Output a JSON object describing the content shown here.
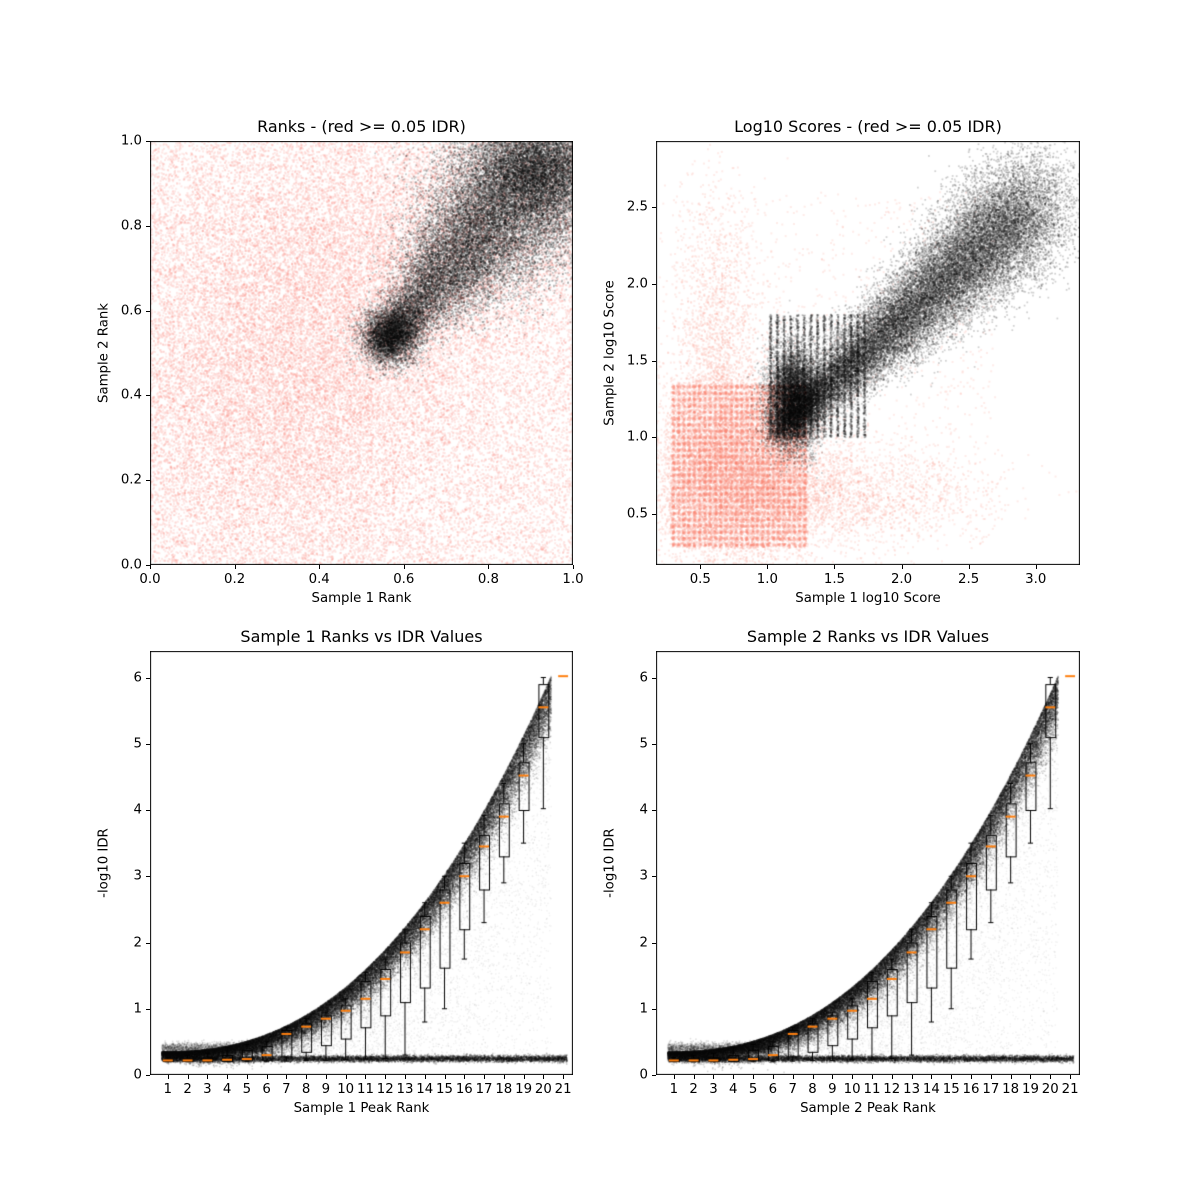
{
  "figure": {
    "background": "#ffffff"
  },
  "colors": {
    "rejected": "#fa8072",
    "accepted": "#000000",
    "boxplot_median": "#ff7f0e",
    "boxplot_line": "#000000"
  },
  "chart_data": [
    {
      "id": "ranks-scatter",
      "type": "scatter",
      "title": "Ranks - (red >= 0.05 IDR)",
      "xlabel": "Sample 1 Rank",
      "ylabel": "Sample 2 Rank",
      "xlim": [
        0,
        1
      ],
      "ylim": [
        0,
        1
      ],
      "clamp": true,
      "xticks": [
        0,
        0.2,
        0.4,
        0.6,
        0.8,
        1.0
      ],
      "xtick_labels": [
        "0.0",
        "0.2",
        "0.4",
        "0.6",
        "0.8",
        "1.0"
      ],
      "yticks": [
        0,
        0.2,
        0.4,
        0.6,
        0.8,
        1.0
      ],
      "ytick_labels": [
        "0.0",
        "0.2",
        "0.4",
        "0.6",
        "0.8",
        "1.0"
      ],
      "series": [
        {
          "name": "rejected-peaks-idr-ge-0.05",
          "color": "#fa8072",
          "alpha": 0.18,
          "size": 2,
          "clouds": [
            {
              "type": "uniform",
              "n": 22000,
              "x": [
                0,
                1
              ],
              "y": [
                0,
                1
              ]
            },
            {
              "type": "gauss",
              "n": 12000,
              "cx": 0.32,
              "cy": 0.42,
              "sx": 0.22,
              "sy": 0.26
            },
            {
              "type": "gauss",
              "n": 5000,
              "cx": 0.52,
              "cy": 0.72,
              "sx": 0.26,
              "sy": 0.18
            }
          ]
        },
        {
          "name": "accepted-peaks-idr-lt-0.05",
          "color": "#000000",
          "alpha": 0.2,
          "size": 1.8,
          "clouds": [
            {
              "type": "taper",
              "n": 24000,
              "x0": 0.53,
              "y0": 0.5,
              "x1": 0.97,
              "y1": 0.99,
              "w0": 0.012,
              "w1": 0.12,
              "pow": 0.6
            },
            {
              "type": "gauss",
              "n": 4000,
              "cx": 0.57,
              "cy": 0.54,
              "sx": 0.035,
              "sy": 0.035
            },
            {
              "type": "gauss",
              "n": 6000,
              "cx": 0.92,
              "cy": 0.93,
              "sx": 0.07,
              "sy": 0.06
            }
          ]
        }
      ]
    },
    {
      "id": "log10-scores-scatter",
      "type": "scatter",
      "title": "Log10 Scores - (red >= 0.05 IDR)",
      "xlabel": "Sample 1 log10 Score",
      "ylabel": "Sample 2 log10 Score",
      "xlim": [
        0.17,
        3.33
      ],
      "ylim": [
        0.17,
        2.93
      ],
      "clamp": false,
      "xticks": [
        0.5,
        1.0,
        1.5,
        2.0,
        2.5,
        3.0
      ],
      "xtick_labels": [
        "0.5",
        "1.0",
        "1.5",
        "2.0",
        "2.5",
        "3.0"
      ],
      "yticks": [
        0.5,
        1.0,
        1.5,
        2.0,
        2.5
      ],
      "ytick_labels": [
        "0.5",
        "1.0",
        "1.5",
        "2.0",
        "2.5"
      ],
      "series": [
        {
          "name": "rejected-peaks-idr-ge-0.05",
          "color": "#fa8072",
          "alpha": 0.16,
          "size": 2,
          "clouds": [
            {
              "type": "grid",
              "n": 15000,
              "x": [
                0.28,
                1.3
              ],
              "y": [
                0.28,
                1.35
              ],
              "nx": 26,
              "ny": 26,
              "jx": 0.008,
              "jy": 0.008
            },
            {
              "type": "gauss",
              "n": 7000,
              "cx": 0.75,
              "cy": 0.75,
              "sx": 0.33,
              "sy": 0.33
            },
            {
              "type": "gauss",
              "n": 2500,
              "cx": 1.5,
              "cy": 0.62,
              "sx": 0.55,
              "sy": 0.16
            },
            {
              "type": "gauss",
              "n": 2000,
              "cx": 0.62,
              "cy": 1.6,
              "sx": 0.16,
              "sy": 0.5
            },
            {
              "type": "uniform",
              "n": 1200,
              "x": [
                0.3,
                2.7
              ],
              "y": [
                0.3,
                2.6
              ]
            }
          ]
        },
        {
          "name": "accepted-peaks-idr-lt-0.05",
          "color": "#000000",
          "alpha": 0.18,
          "size": 1.8,
          "clouds": [
            {
              "type": "taper",
              "n": 28000,
              "x0": 1.05,
              "y0": 1.02,
              "x1": 3.0,
              "y1": 2.55,
              "w0": 0.05,
              "w1": 0.2,
              "pow": 0.75
            },
            {
              "type": "gauss",
              "n": 8000,
              "cx": 1.2,
              "cy": 1.25,
              "sx": 0.1,
              "sy": 0.16
            },
            {
              "type": "grid",
              "n": 5000,
              "x": [
                1.0,
                1.75
              ],
              "y": [
                1.0,
                1.8
              ],
              "nx": 15,
              "ny": 0,
              "jx": 0.005,
              "jy": 0
            }
          ]
        }
      ]
    },
    {
      "id": "sample1-ranks-vs-idr",
      "type": "scatter",
      "title": "Sample 1 Ranks vs IDR Values",
      "xlabel": "Sample 1 Peak Rank",
      "ylabel": "-log10 IDR",
      "xlim": [
        0.1,
        21.5
      ],
      "ylim": [
        0,
        6.4
      ],
      "clamp": false,
      "xticks": [
        1,
        2,
        3,
        4,
        5,
        6,
        7,
        8,
        9,
        10,
        11,
        12,
        13,
        14,
        15,
        16,
        17,
        18,
        19,
        20,
        21
      ],
      "xtick_labels": [
        "1",
        "2",
        "3",
        "4",
        "5",
        "6",
        "7",
        "8",
        "9",
        "10",
        "11",
        "12",
        "13",
        "14",
        "15",
        "16",
        "17",
        "18",
        "19",
        "20",
        "21"
      ],
      "yticks": [
        0,
        1,
        2,
        3,
        4,
        5,
        6
      ],
      "ytick_labels": [
        "0",
        "1",
        "2",
        "3",
        "4",
        "5",
        "6"
      ],
      "series": [
        {
          "name": "idr-points",
          "color": "#000000",
          "alpha": 0.16,
          "size": 1.6,
          "clouds": [
            {
              "type": "curve",
              "n": 38000,
              "x": [
                0.7,
                20.4
              ],
              "base": 0.35,
              "amp": 5.67,
              "pow": 2.35,
              "edge": 0.045,
              "grow": 0.32,
              "ymax": 6.05
            },
            {
              "type": "trail",
              "n": 10000,
              "x": [
                5,
                20.4
              ],
              "xref": [
                0.7,
                20.4
              ],
              "base": 0.35,
              "amp": 5.67,
              "pow": 2.35,
              "floor": 0.32,
              "expo": 2.4,
              "alpha": 0.05
            },
            {
              "type": "band",
              "n": 8000,
              "x": [
                0.7,
                21.2
              ],
              "yc": 0.245,
              "h": 0.05,
              "alpha": 0.2
            },
            {
              "type": "band",
              "n": 2200,
              "x": [
                0.7,
                6.0
              ],
              "yc": 0.4,
              "h": 0.09,
              "alpha": 0.12
            }
          ]
        }
      ],
      "boxplot": {
        "positions": [
          1,
          2,
          3,
          4,
          5,
          6,
          7,
          8,
          9,
          10,
          11,
          12,
          13,
          14,
          15,
          16,
          17,
          18,
          19,
          20,
          21
        ],
        "median": [
          0.22,
          0.22,
          0.22,
          0.23,
          0.24,
          0.3,
          0.62,
          0.73,
          0.85,
          0.97,
          1.15,
          1.45,
          1.85,
          2.2,
          2.6,
          3.0,
          3.45,
          3.9,
          4.52,
          5.55,
          6.02
        ],
        "q1": [
          0.21,
          0.21,
          0.21,
          0.21,
          0.22,
          0.23,
          0.28,
          0.35,
          0.45,
          0.55,
          0.72,
          0.9,
          1.1,
          1.32,
          1.62,
          2.2,
          2.8,
          3.3,
          4.0,
          5.1,
          null
        ],
        "q3": [
          0.24,
          0.25,
          0.26,
          0.3,
          0.38,
          0.44,
          0.68,
          0.78,
          0.9,
          1.05,
          1.42,
          1.6,
          2.0,
          2.4,
          2.8,
          3.2,
          3.62,
          4.1,
          4.72,
          5.9,
          null
        ],
        "whisker_lo": [
          0.2,
          0.2,
          0.2,
          0.2,
          0.2,
          0.2,
          0.21,
          0.22,
          0.22,
          0.23,
          0.24,
          0.25,
          0.3,
          0.8,
          1.0,
          1.75,
          2.3,
          2.9,
          3.5,
          4.02,
          null
        ],
        "whisker_hi": [
          0.26,
          0.3,
          0.33,
          0.42,
          0.46,
          0.5,
          0.72,
          0.85,
          0.95,
          1.15,
          1.55,
          1.75,
          2.2,
          2.6,
          3.0,
          3.5,
          3.92,
          4.4,
          5.0,
          6.0,
          null
        ],
        "box_width": 0.5,
        "cap_width": 0.26,
        "line_color": "#000000",
        "median_color": "#ff7f0e"
      }
    },
    {
      "id": "sample2-ranks-vs-idr",
      "type": "scatter",
      "title": "Sample 2 Ranks vs IDR Values",
      "xlabel": "Sample 2 Peak Rank",
      "ylabel": "-log10 IDR",
      "xlim": [
        0.1,
        21.5
      ],
      "ylim": [
        0,
        6.4
      ],
      "clamp": false,
      "xticks": [
        1,
        2,
        3,
        4,
        5,
        6,
        7,
        8,
        9,
        10,
        11,
        12,
        13,
        14,
        15,
        16,
        17,
        18,
        19,
        20,
        21
      ],
      "xtick_labels": [
        "1",
        "2",
        "3",
        "4",
        "5",
        "6",
        "7",
        "8",
        "9",
        "10",
        "11",
        "12",
        "13",
        "14",
        "15",
        "16",
        "17",
        "18",
        "19",
        "20",
        "21"
      ],
      "yticks": [
        0,
        1,
        2,
        3,
        4,
        5,
        6
      ],
      "ytick_labels": [
        "0",
        "1",
        "2",
        "3",
        "4",
        "5",
        "6"
      ],
      "series": [
        {
          "name": "idr-points",
          "color": "#000000",
          "alpha": 0.16,
          "size": 1.6,
          "clouds": [
            {
              "type": "curve",
              "n": 38000,
              "x": [
                0.7,
                20.4
              ],
              "base": 0.35,
              "amp": 5.67,
              "pow": 2.35,
              "edge": 0.045,
              "grow": 0.32,
              "ymax": 6.05
            },
            {
              "type": "trail",
              "n": 10000,
              "x": [
                5,
                20.4
              ],
              "xref": [
                0.7,
                20.4
              ],
              "base": 0.35,
              "amp": 5.67,
              "pow": 2.35,
              "floor": 0.32,
              "expo": 2.4,
              "alpha": 0.05
            },
            {
              "type": "band",
              "n": 8000,
              "x": [
                0.7,
                21.2
              ],
              "yc": 0.245,
              "h": 0.05,
              "alpha": 0.2
            },
            {
              "type": "band",
              "n": 2200,
              "x": [
                0.7,
                6.0
              ],
              "yc": 0.4,
              "h": 0.09,
              "alpha": 0.12
            }
          ]
        }
      ],
      "boxplot": {
        "positions": [
          1,
          2,
          3,
          4,
          5,
          6,
          7,
          8,
          9,
          10,
          11,
          12,
          13,
          14,
          15,
          16,
          17,
          18,
          19,
          20,
          21
        ],
        "median": [
          0.22,
          0.22,
          0.22,
          0.23,
          0.24,
          0.3,
          0.62,
          0.73,
          0.85,
          0.97,
          1.15,
          1.45,
          1.85,
          2.2,
          2.6,
          3.0,
          3.45,
          3.9,
          4.52,
          5.55,
          6.02
        ],
        "q1": [
          0.21,
          0.21,
          0.21,
          0.21,
          0.22,
          0.23,
          0.28,
          0.35,
          0.45,
          0.55,
          0.72,
          0.9,
          1.1,
          1.32,
          1.62,
          2.2,
          2.8,
          3.3,
          4.0,
          5.1,
          null
        ],
        "q3": [
          0.24,
          0.25,
          0.26,
          0.3,
          0.38,
          0.44,
          0.68,
          0.78,
          0.9,
          1.05,
          1.42,
          1.6,
          2.0,
          2.4,
          2.8,
          3.2,
          3.62,
          4.1,
          4.72,
          5.9,
          null
        ],
        "whisker_lo": [
          0.2,
          0.2,
          0.2,
          0.2,
          0.2,
          0.2,
          0.21,
          0.22,
          0.22,
          0.23,
          0.24,
          0.25,
          0.3,
          0.8,
          1.0,
          1.75,
          2.3,
          2.9,
          3.5,
          4.02,
          null
        ],
        "whisker_hi": [
          0.26,
          0.3,
          0.33,
          0.42,
          0.46,
          0.5,
          0.72,
          0.85,
          0.95,
          1.15,
          1.55,
          1.75,
          2.2,
          2.6,
          3.0,
          3.5,
          3.92,
          4.4,
          5.0,
          6.0,
          null
        ],
        "box_width": 0.5,
        "cap_width": 0.26,
        "line_color": "#000000",
        "median_color": "#ff7f0e"
      }
    }
  ]
}
